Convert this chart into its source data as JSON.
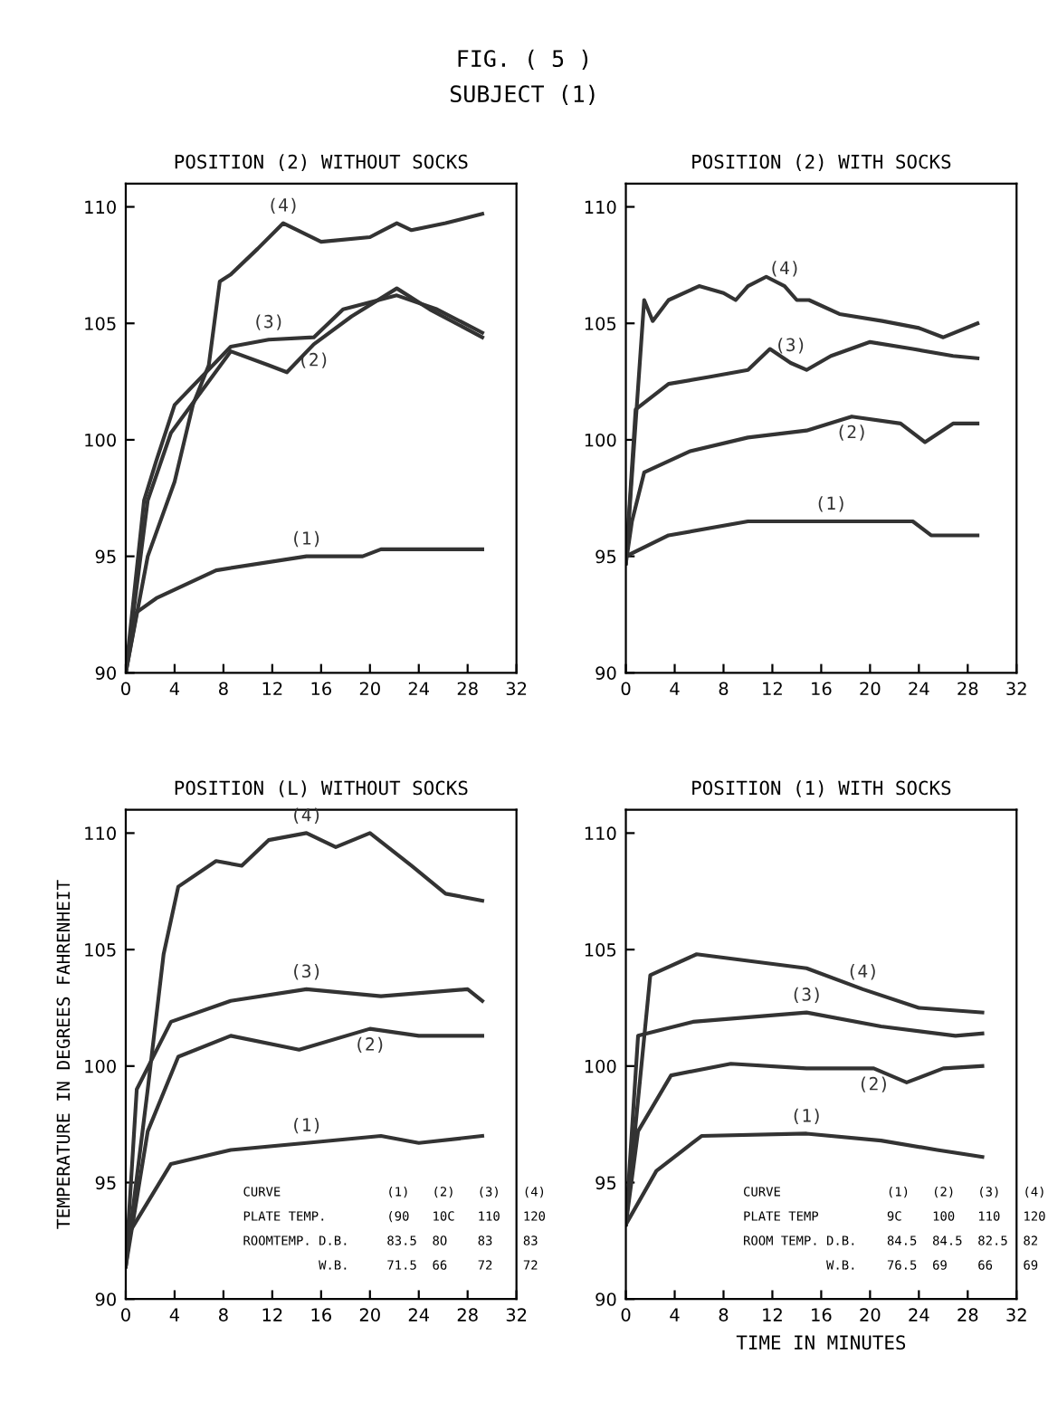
{
  "chart_data": [
    {
      "type": "line",
      "title": "POSITION (2) WITHOUT SOCKS",
      "annotations": [
        "FIG. ( 5 )",
        "SUBJECT (1)"
      ],
      "xlim": [
        0,
        32
      ],
      "xticks": [
        0,
        4,
        8,
        12,
        16,
        20,
        24,
        28,
        32
      ],
      "ylim": [
        90,
        111
      ],
      "yticks": [
        90,
        95,
        100,
        105,
        110
      ],
      "grid": false,
      "legend": false,
      "series": [
        {
          "name": "(1)",
          "color": "#333333",
          "x": [
            0,
            0.9,
            2.5,
            7.4,
            14.8,
            19.4,
            20.9,
            29.2
          ],
          "values": [
            90,
            92.6,
            93.2,
            94.4,
            95.0,
            95.0,
            95.3,
            95.3
          ]
        },
        {
          "name": "(2)",
          "color": "#333333",
          "x": [
            0,
            1.8,
            3.7,
            8.6,
            11.7,
            13.2,
            15.4,
            18.5,
            22.2,
            24.9,
            29.2
          ],
          "values": [
            90,
            97.4,
            100.3,
            103.8,
            103.2,
            102.9,
            104.1,
            105.3,
            106.5,
            105.6,
            104.4
          ]
        },
        {
          "name": "(3)",
          "color": "#333333",
          "x": [
            0,
            1.5,
            2.5,
            4,
            8.6,
            11.7,
            15.4,
            17.8,
            22.2,
            25.5,
            29.2
          ],
          "values": [
            90,
            97.4,
            99.1,
            101.5,
            104.0,
            104.3,
            104.4,
            105.6,
            106.2,
            105.6,
            104.6
          ]
        },
        {
          "name": "(4)",
          "color": "#333333",
          "x": [
            0,
            1.8,
            4,
            5.5,
            6.8,
            7.7,
            8.6,
            10.8,
            12.9,
            16,
            20,
            22.2,
            23.4,
            26.2,
            29.2
          ],
          "values": [
            90,
            95,
            98.2,
            101.5,
            103.2,
            106.8,
            107.1,
            108.2,
            109.3,
            108.5,
            108.7,
            109.3,
            109.0,
            109.3,
            109.7
          ]
        }
      ]
    },
    {
      "type": "line",
      "title": "POSITION (2) WITH SOCKS",
      "xlim": [
        0,
        32
      ],
      "xticks": [
        0,
        4,
        8,
        12,
        16,
        20,
        24,
        28,
        32
      ],
      "ylim": [
        90,
        111
      ],
      "yticks": [
        90,
        95,
        100,
        105,
        110
      ],
      "grid": false,
      "legend": false,
      "series": [
        {
          "name": "(1)",
          "color": "#333333",
          "x": [
            0,
            3.5,
            10,
            16.8,
            23.5,
            25,
            28.8
          ],
          "values": [
            95.0,
            95.9,
            96.5,
            96.5,
            96.5,
            95.9,
            95.9
          ]
        },
        {
          "name": "(2)",
          "color": "#333333",
          "x": [
            0,
            0.5,
            1.5,
            5.2,
            10,
            14.8,
            18.5,
            22.5,
            24.5,
            26.8,
            28.8
          ],
          "values": [
            94.7,
            96.5,
            98.6,
            99.5,
            100.1,
            100.4,
            101.0,
            100.7,
            99.9,
            100.7,
            100.7
          ]
        },
        {
          "name": "(3)",
          "color": "#333333",
          "x": [
            0,
            0.8,
            3.5,
            6.8,
            10,
            11.8,
            13.5,
            14.8,
            16.8,
            20,
            23.5,
            26.8,
            28.8
          ],
          "values": [
            94.7,
            101.3,
            102.4,
            102.7,
            103.0,
            103.9,
            103.3,
            103.0,
            103.6,
            104.2,
            103.9,
            103.6,
            103.5
          ]
        },
        {
          "name": "(4)",
          "color": "#333333",
          "x": [
            0,
            1.5,
            2.2,
            3.5,
            6,
            8,
            9,
            10,
            11.5,
            13,
            14,
            15,
            17.5,
            21,
            24,
            26,
            28.8
          ],
          "values": [
            94.7,
            106.0,
            105.1,
            106.0,
            106.6,
            106.3,
            106.0,
            106.6,
            107.0,
            106.6,
            106.0,
            106.0,
            105.4,
            105.1,
            104.8,
            104.4,
            105.0
          ]
        }
      ]
    },
    {
      "type": "line",
      "title": "POSITION (L) WITHOUT SOCKS",
      "ylabel": "TEMPERATURE IN DEGREES FAHRENHEIT",
      "annotations": [
        "CURVE              (1)   (2)   (3)   (4)",
        "PLATE TEMP.        (90   10C   110   120",
        "ROOMTEMP. D.B.     83.5  8O    83    83",
        "          W.B.     71.5  66    72    72"
      ],
      "xlim": [
        0,
        32
      ],
      "xticks": [
        0,
        4,
        8,
        12,
        16,
        20,
        24,
        28,
        32
      ],
      "ylim": [
        90,
        111
      ],
      "yticks": [
        90,
        95,
        100,
        105,
        110
      ],
      "grid": false,
      "legend": false,
      "series": [
        {
          "name": "(1)",
          "color": "#333333",
          "x": [
            0,
            3.7,
            8.6,
            14.8,
            20.9,
            24,
            29.2
          ],
          "values": [
            92.6,
            95.8,
            96.4,
            96.7,
            97.0,
            96.7,
            97.0
          ]
        },
        {
          "name": "(2)",
          "color": "#333333",
          "x": [
            0,
            1.8,
            4.3,
            8.6,
            14.2,
            20,
            24,
            29.2
          ],
          "values": [
            91.4,
            97.2,
            100.4,
            101.3,
            100.7,
            101.6,
            101.3,
            101.3
          ]
        },
        {
          "name": "(3)",
          "color": "#333333",
          "x": [
            0,
            0.9,
            3.7,
            8.6,
            14.8,
            20.9,
            28,
            29.2
          ],
          "values": [
            91.4,
            99.0,
            101.9,
            102.8,
            103.3,
            103.0,
            103.3,
            102.8
          ]
        },
        {
          "name": "(4)",
          "color": "#333333",
          "x": [
            0,
            1.8,
            3.1,
            4.3,
            7.4,
            9.5,
            11.7,
            14.8,
            17.2,
            20,
            23.4,
            26.2,
            29.2
          ],
          "values": [
            91.4,
            99.0,
            104.8,
            107.7,
            108.8,
            108.6,
            109.7,
            110.0,
            109.4,
            110.0,
            108.6,
            107.4,
            107.1
          ]
        }
      ]
    },
    {
      "type": "line",
      "title": "POSITION (1) WITH SOCKS",
      "xlabel": "TIME IN MINUTES",
      "annotations": [
        "CURVE              (1)   (2)   (3)   (4)",
        "PLATE TEMP         9C    100   110   120",
        "ROOM TEMP. D.B.    84.5  84.5  82.5  82",
        "           W.B.    76.5  69    66    69"
      ],
      "xlim": [
        0,
        32
      ],
      "xticks": [
        0,
        4,
        8,
        12,
        16,
        20,
        24,
        28,
        32
      ],
      "ylim": [
        90,
        111
      ],
      "yticks": [
        90,
        95,
        100,
        105,
        110
      ],
      "grid": false,
      "legend": false,
      "series": [
        {
          "name": "(1)",
          "color": "#333333",
          "x": [
            0,
            2.5,
            6.2,
            14.8,
            20.9,
            25.5,
            29.2
          ],
          "values": [
            93.2,
            95.5,
            97.0,
            97.1,
            96.8,
            96.4,
            96.1
          ]
        },
        {
          "name": "(2)",
          "color": "#333333",
          "x": [
            0,
            1,
            3.7,
            8.6,
            14.8,
            20.3,
            23,
            26,
            29.2
          ],
          "values": [
            93.2,
            97.2,
            99.6,
            100.1,
            99.9,
            99.9,
            99.3,
            99.9,
            100.0
          ]
        },
        {
          "name": "(3)",
          "color": "#333333",
          "x": [
            0,
            1,
            5.5,
            14.8,
            20.9,
            27,
            29.2
          ],
          "values": [
            93.2,
            101.3,
            101.9,
            102.3,
            101.7,
            101.3,
            101.4
          ]
        },
        {
          "name": "(4)",
          "color": "#333333",
          "x": [
            0,
            2,
            5.8,
            14.8,
            19.4,
            24,
            29.2
          ],
          "values": [
            93.2,
            103.9,
            104.8,
            104.2,
            103.3,
            102.5,
            102.3
          ]
        }
      ]
    }
  ]
}
